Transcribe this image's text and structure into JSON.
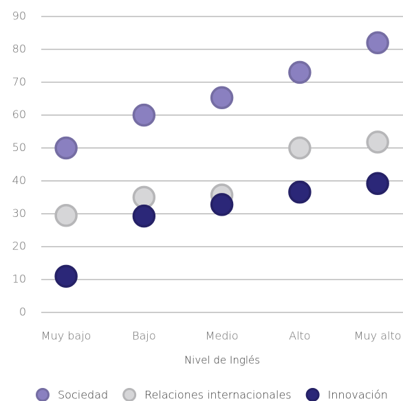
{
  "chart_data": {
    "type": "dot",
    "x_label": "Nivel de Inglés",
    "categories": [
      "Muy bajo",
      "Bajo",
      "Medio",
      "Alto",
      "Muy alto"
    ],
    "series": [
      {
        "name": "Sociedad",
        "color": "#8a80c0",
        "values": [
          50,
          60,
          65.3,
          73,
          82
        ]
      },
      {
        "name": "Relaciones internacionales",
        "color": "#d6d6d8",
        "values": [
          29.5,
          35,
          35.7,
          50,
          51.8
        ]
      },
      {
        "name": "Innovación",
        "color": "#2b2778",
        "values": [
          11,
          29.3,
          32.8,
          36.6,
          39.2
        ]
      }
    ],
    "ylim": [
      0,
      90
    ],
    "yticks": [
      0,
      10,
      20,
      30,
      40,
      50,
      60,
      70,
      80,
      90
    ],
    "grid": true
  }
}
